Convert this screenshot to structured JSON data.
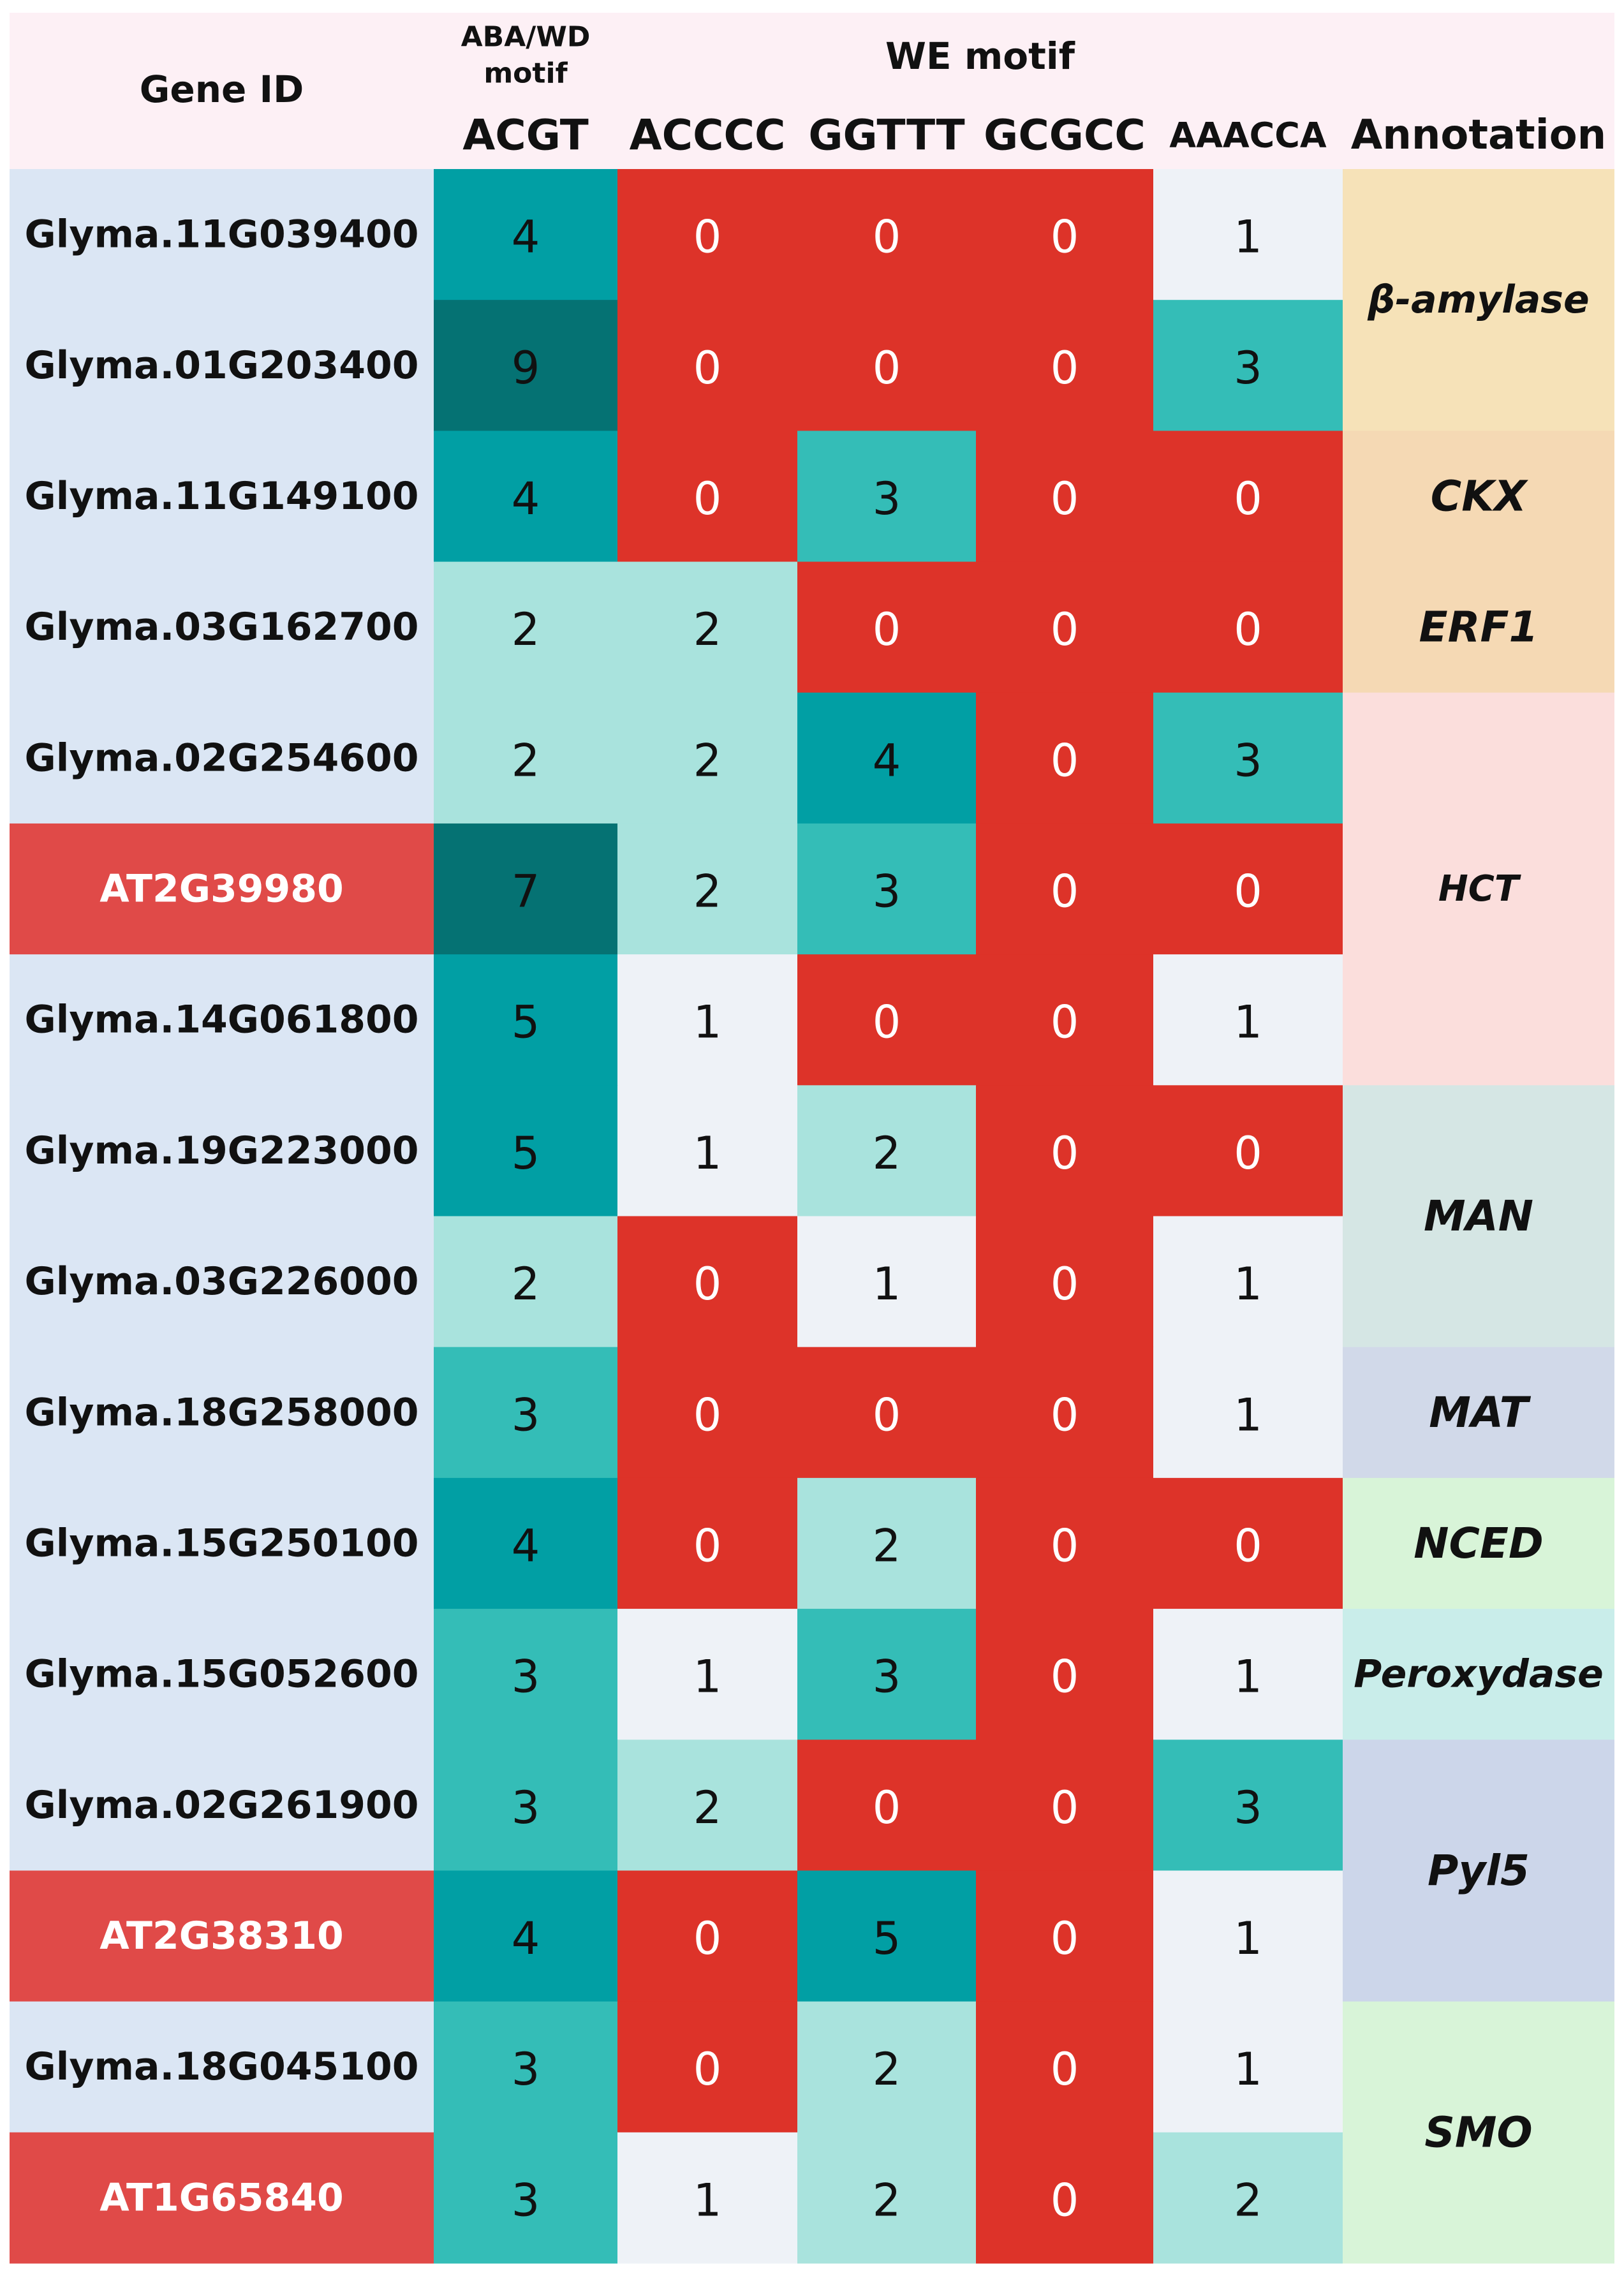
{
  "chart_data": {
    "type": "heatmap",
    "header": {
      "gene_id": "Gene ID",
      "group1": "ABA/WD\nmotif",
      "group2": "WE motif",
      "annotation": "Annotation"
    },
    "columns": [
      "ACGT",
      "ACCCC",
      "GGTTT",
      "GCGCC",
      "AAACCA"
    ],
    "rows": [
      {
        "gene": "Glyma.11G039400",
        "arabidopsis": false,
        "values": [
          4,
          0,
          0,
          0,
          1
        ]
      },
      {
        "gene": "Glyma.01G203400",
        "arabidopsis": false,
        "values": [
          9,
          0,
          0,
          0,
          3
        ]
      },
      {
        "gene": "Glyma.11G149100",
        "arabidopsis": false,
        "values": [
          4,
          0,
          3,
          0,
          0
        ]
      },
      {
        "gene": "Glyma.03G162700",
        "arabidopsis": false,
        "values": [
          2,
          2,
          0,
          0,
          0
        ]
      },
      {
        "gene": "Glyma.02G254600",
        "arabidopsis": false,
        "values": [
          2,
          2,
          4,
          0,
          3
        ]
      },
      {
        "gene": "AT2G39980",
        "arabidopsis": true,
        "values": [
          7,
          2,
          3,
          0,
          0
        ]
      },
      {
        "gene": "Glyma.14G061800",
        "arabidopsis": false,
        "values": [
          5,
          1,
          0,
          0,
          1
        ]
      },
      {
        "gene": "Glyma.19G223000",
        "arabidopsis": false,
        "values": [
          5,
          1,
          2,
          0,
          0
        ]
      },
      {
        "gene": "Glyma.03G226000",
        "arabidopsis": false,
        "values": [
          2,
          0,
          1,
          0,
          1
        ]
      },
      {
        "gene": "Glyma.18G258000",
        "arabidopsis": false,
        "values": [
          3,
          0,
          0,
          0,
          1
        ]
      },
      {
        "gene": "Glyma.15G250100",
        "arabidopsis": false,
        "values": [
          4,
          0,
          2,
          0,
          0
        ]
      },
      {
        "gene": "Glyma.15G052600",
        "arabidopsis": false,
        "values": [
          3,
          1,
          3,
          0,
          1
        ]
      },
      {
        "gene": "Glyma.02G261900",
        "arabidopsis": false,
        "values": [
          3,
          2,
          0,
          0,
          3
        ]
      },
      {
        "gene": "AT2G38310",
        "arabidopsis": true,
        "values": [
          4,
          0,
          5,
          0,
          1
        ]
      },
      {
        "gene": "Glyma.18G045100",
        "arabidopsis": false,
        "values": [
          3,
          0,
          2,
          0,
          1
        ]
      },
      {
        "gene": "AT1G65840",
        "arabidopsis": true,
        "values": [
          3,
          1,
          2,
          0,
          2
        ]
      }
    ],
    "annotations": [
      {
        "label": "β-amylase",
        "first_row": 0,
        "last_row": 1,
        "color": "#f6e2b8"
      },
      {
        "label": "CKX",
        "first_row": 2,
        "last_row": 2,
        "color": "#f5d9b4"
      },
      {
        "label": "ERF1",
        "first_row": 3,
        "last_row": 3,
        "color": "#f5d9b4"
      },
      {
        "label": "HCT",
        "first_row": 4,
        "last_row": 6,
        "color": "#fbdedc"
      },
      {
        "label": "MAN",
        "first_row": 7,
        "last_row": 8,
        "color": "#d5e6e4"
      },
      {
        "label": "MAT",
        "first_row": 9,
        "last_row": 9,
        "color": "#d1d9e9"
      },
      {
        "label": "NCED",
        "first_row": 10,
        "last_row": 10,
        "color": "#d8f4d8"
      },
      {
        "label": "Peroxydase",
        "first_row": 11,
        "last_row": 11,
        "color": "#c9edea"
      },
      {
        "label": "Pyl5",
        "first_row": 12,
        "last_row": 13,
        "color": "#ccd6ea"
      },
      {
        "label": "SMO",
        "first_row": 14,
        "last_row": 15,
        "color": "#d8f4d8"
      }
    ],
    "colors": {
      "zero": "#dd3329",
      "one": "#eef2f7",
      "two": "#a9e3dd",
      "three": "#34bdb7",
      "four_five": "#019fa4",
      "seven_plus": "#057273",
      "header_bg": "#fdf0f5",
      "soy_gene_bg": "#dbe6f4",
      "arabidopsis_gene_bg": "#e04a48",
      "arabidopsis_text": "#ffffff",
      "text": "#111111"
    }
  }
}
